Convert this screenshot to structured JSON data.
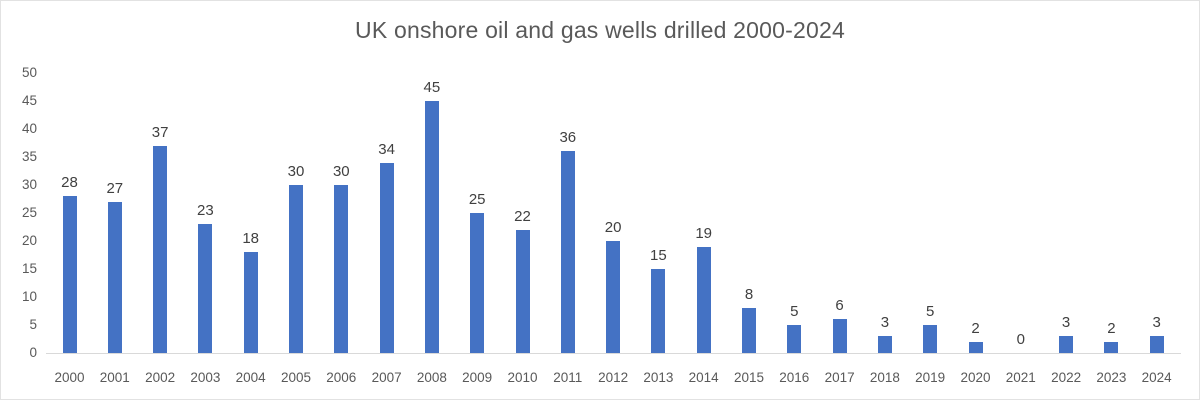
{
  "title": "UK onshore oil and gas wells drilled 2000-2024",
  "colors": {
    "bar": "#4472C4",
    "title_text": "#595959",
    "axis_text": "#595959",
    "data_label_text": "#404040",
    "axis_line": "#d9d9d9",
    "background": "#ffffff"
  },
  "chart_data": {
    "type": "bar",
    "title": "UK onshore oil and gas wells drilled 2000-2024",
    "categories": [
      "2000",
      "2001",
      "2002",
      "2003",
      "2004",
      "2005",
      "2006",
      "2007",
      "2008",
      "2009",
      "2010",
      "2011",
      "2012",
      "2013",
      "2014",
      "2015",
      "2016",
      "2017",
      "2018",
      "2019",
      "2020",
      "2021",
      "2022",
      "2023",
      "2024"
    ],
    "values": [
      28,
      27,
      37,
      23,
      18,
      30,
      30,
      34,
      45,
      25,
      22,
      36,
      20,
      15,
      19,
      8,
      5,
      6,
      3,
      5,
      2,
      0,
      3,
      2,
      3
    ],
    "xlabel": "",
    "ylabel": "",
    "ylim": [
      0,
      50
    ],
    "yticks": [
      0,
      5,
      10,
      15,
      20,
      25,
      30,
      35,
      40,
      45,
      50
    ],
    "grid": false,
    "legend": "none",
    "data_labels": true,
    "bar_color": "#4472C4"
  }
}
